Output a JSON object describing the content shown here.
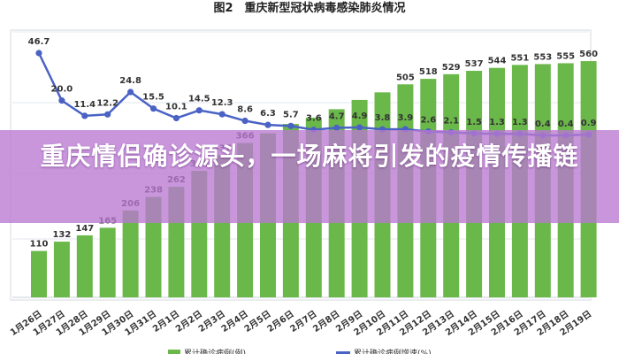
{
  "figure_title": "图2　重庆新型冠状病毒感染肺炎情况",
  "banner_text": "重庆情侣确诊源头，一场麻将引发的疫情传播链",
  "colors": {
    "bar": "#6bb84a",
    "line": "#4a62c4",
    "banner": "#ba78d2"
  },
  "chart_data": {
    "type": "bar+line",
    "title": "图2　重庆新型冠状病毒感染肺炎情况",
    "categories": [
      "1月26日",
      "1月27日",
      "1月28日",
      "1月29日",
      "1月30日",
      "1月31日",
      "2月1日",
      "2月2日",
      "2月3日",
      "2月4日",
      "2月5日",
      "2月6日",
      "2月7日",
      "2月8日",
      "2月9日",
      "2月10日",
      "2月11日",
      "2月12日",
      "2月13日",
      "2月14日",
      "2月15日",
      "2月16日",
      "2月17日",
      "2月18日",
      "2月19日"
    ],
    "series": [
      {
        "name": "累计确诊病例(例)",
        "type": "bar",
        "values": [
          110,
          132,
          147,
          165,
          206,
          238,
          262,
          300,
          337,
          366,
          389,
          411,
          426,
          446,
          468,
          486,
          505,
          518,
          529,
          537,
          544,
          551,
          553,
          555,
          560
        ],
        "labels": [
          "110",
          "132",
          "147",
          "165",
          "206",
          "238",
          "262",
          "300",
          "337",
          "366",
          "",
          "",
          "",
          "",
          "",
          "",
          "505",
          "518",
          "529",
          "537",
          "544",
          "551",
          "553",
          "555",
          "560"
        ]
      },
      {
        "name": "累计确诊病例增速(%)",
        "type": "line",
        "values": [
          46.7,
          20.0,
          11.4,
          12.2,
          24.8,
          15.5,
          10.1,
          14.5,
          12.3,
          8.6,
          6.3,
          5.7,
          3.6,
          4.7,
          4.9,
          3.8,
          3.9,
          2.6,
          2.1,
          1.5,
          1.3,
          1.3,
          0.4,
          0.4,
          0.9
        ],
        "labels": [
          "46.7",
          "20.0",
          "11.4",
          "12.2",
          "24.8",
          "15.5",
          "10.1",
          "14.5",
          "12.3",
          "8.6",
          "6.3",
          "5.7",
          "3.6",
          "4.7",
          "4.9",
          "3.8",
          "3.9",
          "2.6",
          "2.1",
          "1.5",
          "1.3",
          "1.3",
          "0.4",
          "0.4",
          "0.9"
        ]
      }
    ],
    "grid": true,
    "legend_position": "bottom"
  }
}
